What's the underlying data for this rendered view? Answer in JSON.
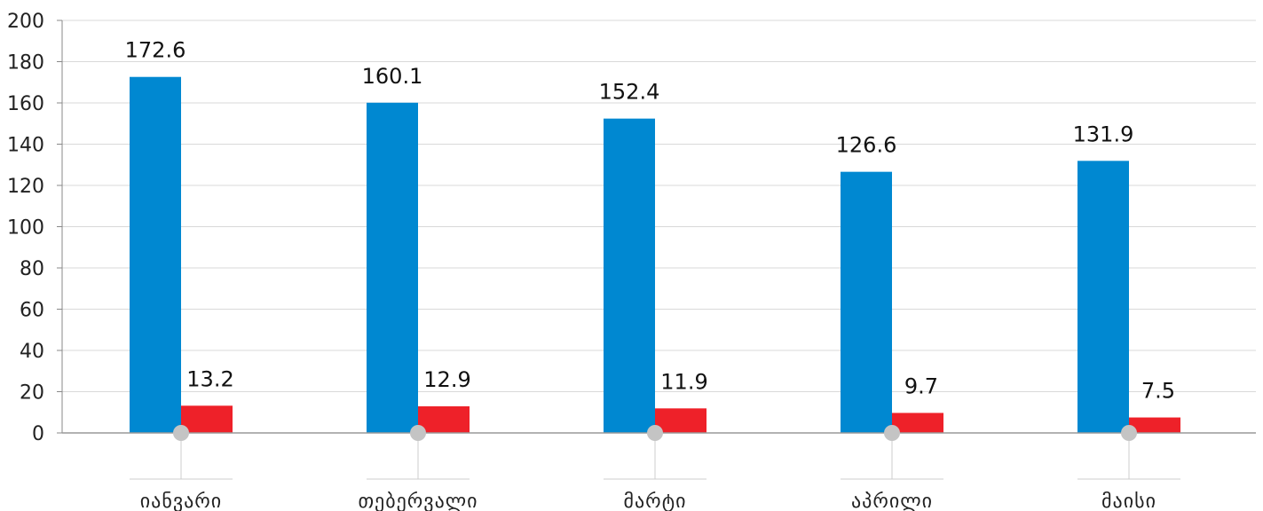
{
  "chart_data": {
    "type": "bar",
    "categories": [
      "იანვარი",
      "თებერვალი",
      "მარტი",
      "აპრილი",
      "მაისი"
    ],
    "series": [
      {
        "values": [
          172.6,
          160.1,
          152.4,
          126.6,
          131.9
        ],
        "color": "#0088d1"
      },
      {
        "values": [
          13.2,
          12.9,
          11.9,
          9.7,
          7.5
        ],
        "color": "#ee2129"
      }
    ],
    "y_ticks": [
      0,
      20,
      40,
      60,
      80,
      100,
      120,
      140,
      160,
      180,
      200
    ],
    "ylim": [
      0,
      200
    ],
    "grid": true,
    "legend": "none",
    "title": "",
    "xlabel": "",
    "ylabel": ""
  }
}
